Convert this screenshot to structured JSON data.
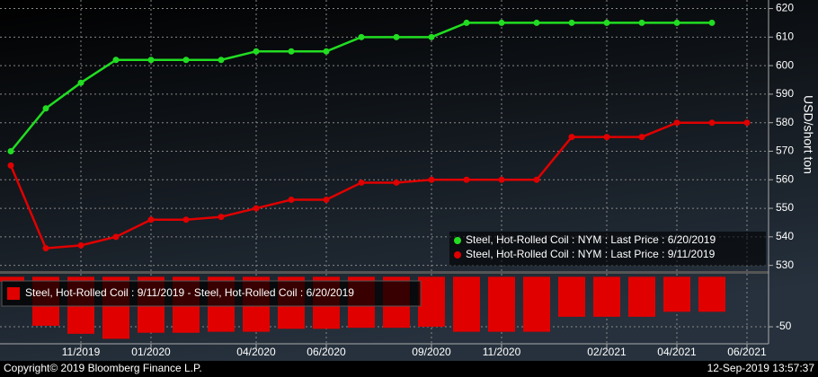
{
  "chart_data": [
    {
      "type": "line",
      "ylabel": "USD/short ton",
      "ylim": [
        528,
        623
      ],
      "yticks": [
        530,
        540,
        550,
        560,
        570,
        580,
        590,
        600,
        610,
        620
      ],
      "grid": true,
      "legend": "bottom-right",
      "series": [
        {
          "name": "Steel, Hot-Rolled Coil : NYM : Last Price : 6/20/2019",
          "color": "#22dd22",
          "values": [
            570,
            585,
            594,
            602,
            602,
            602,
            602,
            605,
            605,
            605,
            610,
            610,
            610,
            615,
            615,
            615,
            615,
            615,
            615,
            615,
            615,
            null
          ]
        },
        {
          "name": "Steel, Hot-Rolled Coil : NYM : Last Price : 9/11/2019",
          "color": "#e00000",
          "values": [
            565,
            536,
            537,
            540,
            546,
            546,
            547,
            550,
            553,
            553,
            559,
            559,
            560,
            560,
            560,
            560,
            575,
            575,
            575,
            580,
            580,
            580
          ]
        }
      ]
    },
    {
      "type": "bar",
      "categories": [
        null,
        null,
        "11/2019",
        null,
        "01/2020",
        null,
        null,
        "04/2020",
        null,
        "06/2020",
        null,
        null,
        "09/2020",
        null,
        "11/2020",
        null,
        null,
        "02/2021",
        null,
        "04/2021",
        null,
        "06/2021"
      ],
      "ylim": [
        -67,
        3
      ],
      "yticks": [
        -50
      ],
      "grid": true,
      "legend": "top-left",
      "series": [
        {
          "name": "Steel, Hot-Rolled Coil : 9/11/2019 - Steel, Hot-Rolled Coil : 6/20/2019",
          "color": "#e00000",
          "values": [
            -5,
            -49,
            -57,
            -62,
            -56,
            -56,
            -55,
            -55,
            -52,
            -52,
            -51,
            -51,
            -50,
            -55,
            -55,
            -55,
            -40,
            -40,
            -40,
            -35,
            -35,
            null
          ]
        }
      ]
    }
  ],
  "footer": {
    "copyright": "Copyright© 2019 Bloomberg Finance L.P.",
    "timestamp": "12-Sep-2019 13:57:37"
  }
}
